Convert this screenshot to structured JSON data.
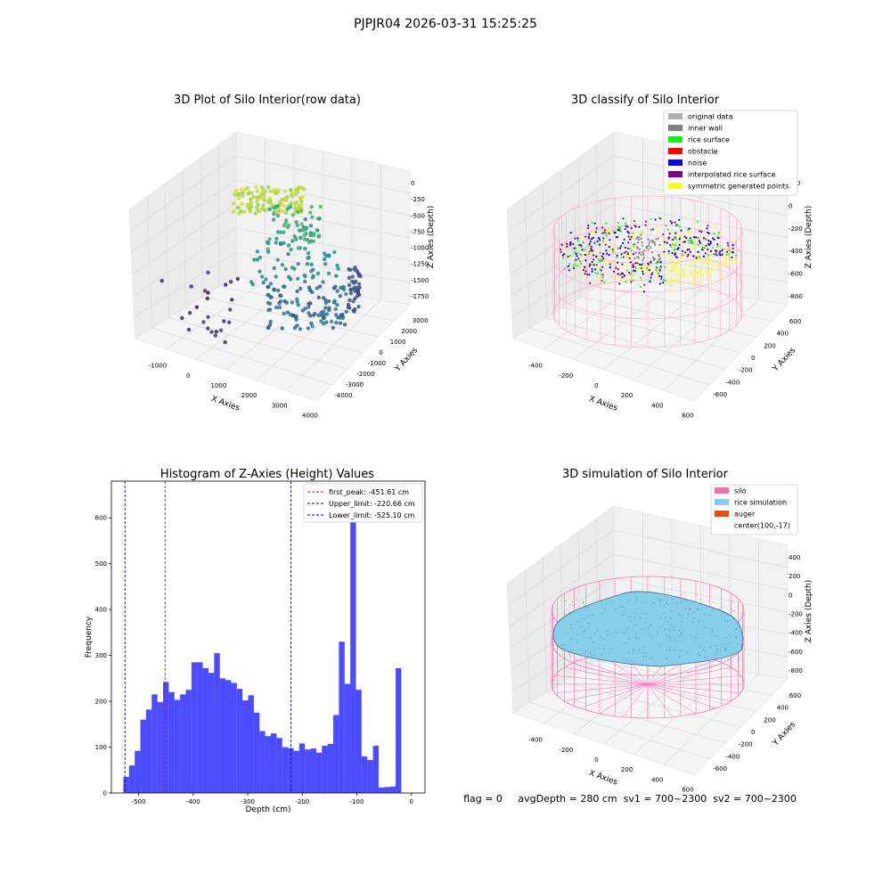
{
  "suptitle": "PJPJR04 2026-03-31 15:25:25",
  "panels": {
    "p1": {
      "title": "3D Plot of Silo Interior(row data)",
      "xlabel": "X Axies",
      "ylabel": "Y Axies",
      "zlabel": "Z Axies (Depth)",
      "xticks": [
        "-1000",
        "0",
        "1000",
        "2000",
        "3000",
        "4000"
      ],
      "yticks": [
        "-4000",
        "-3000",
        "-2000",
        "-1000",
        "0",
        "1000",
        "2000",
        "3000"
      ],
      "zticks": [
        "0",
        "-250",
        "-500",
        "-750",
        "-1000",
        "-1250",
        "-1500",
        "-1750"
      ]
    },
    "p2": {
      "title": "3D classify of Silo Interior",
      "xlabel": "X Axies",
      "ylabel": "Y Axies",
      "zlabel": "Z Axies (Depth)",
      "xticks": [
        "-400",
        "-200",
        "0",
        "200",
        "400",
        "600"
      ],
      "yticks": [
        "-600",
        "-400",
        "-200",
        "0",
        "200",
        "400",
        "600"
      ],
      "zticks": [
        "200",
        "0",
        "-200",
        "-400",
        "-600",
        "-800"
      ],
      "legend": [
        {
          "label": "original data",
          "color": "#b0b0b0"
        },
        {
          "label": "inner wall",
          "color": "#808080"
        },
        {
          "label": "rice surface",
          "color": "#00ff00"
        },
        {
          "label": "obstacle",
          "color": "#ff0000"
        },
        {
          "label": "noise",
          "color": "#0000ff"
        },
        {
          "label": "interpolated rice surface",
          "color": "#800080"
        },
        {
          "label": "symmetric generated points",
          "color": "#ffff00"
        }
      ]
    },
    "p4": {
      "title": "3D simulation of Silo Interior",
      "xlabel": "X Axies",
      "ylabel": "Y Axies",
      "zlabel": "Z Axies (Depth)",
      "xticks": [
        "-400",
        "-200",
        "0",
        "200",
        "400",
        "600"
      ],
      "yticks": [
        "-600",
        "-400",
        "-200",
        "0",
        "200",
        "400",
        "600"
      ],
      "zticks": [
        "400",
        "200",
        "0",
        "-200",
        "-400",
        "-600",
        "-800"
      ],
      "legend": [
        {
          "label": "silo",
          "color": "#ff69b4"
        },
        {
          "label": "rice simulation",
          "color": "#87ceeb"
        },
        {
          "label": "auger",
          "color": "#ff4500"
        },
        {
          "label": "center(100,-17)",
          "color": ""
        }
      ]
    }
  },
  "status_text": "flag = 0     avgDepth = 280 cm  sv1 = 700~2300  sv2 = 700~2300",
  "chart_data": [
    {
      "type": "scatter",
      "title": "3D Plot of Silo Interior(row data)",
      "xlabel": "X Axies",
      "ylabel": "Y Axies",
      "zlabel": "Z Axies (Depth)",
      "xlim": [
        -1500,
        4500
      ],
      "ylim": [
        -4500,
        3500
      ],
      "zlim": [
        -2000,
        100
      ],
      "colormap": "viridis"
    },
    {
      "type": "scatter",
      "title": "3D classify of Silo Interior",
      "xlabel": "X Axies",
      "ylabel": "Y Axies",
      "zlabel": "Z Axies (Depth)",
      "xlim": [
        -500,
        700
      ],
      "ylim": [
        -700,
        700
      ],
      "zlim": [
        -900,
        300
      ],
      "series": [
        {
          "name": "original data"
        },
        {
          "name": "inner wall"
        },
        {
          "name": "rice surface"
        },
        {
          "name": "obstacle"
        },
        {
          "name": "noise"
        },
        {
          "name": "interpolated rice surface"
        },
        {
          "name": "symmetric generated points"
        }
      ]
    },
    {
      "type": "bar",
      "title": "Histogram of Z-Axies (Height) Values",
      "xlabel": "Depth (cm)",
      "ylabel": "Frequency",
      "xlim": [
        -550,
        25
      ],
      "ylim": [
        0,
        680
      ],
      "xticks": [
        -500,
        -400,
        -300,
        -200,
        -100,
        0
      ],
      "yticks": [
        0,
        100,
        200,
        300,
        400,
        500,
        600
      ],
      "bin_start": -528,
      "bin_width": 10.4,
      "values": [
        35,
        60,
        92,
        160,
        182,
        215,
        198,
        242,
        220,
        203,
        215,
        225,
        285,
        285,
        272,
        262,
        305,
        250,
        246,
        240,
        227,
        202,
        213,
        175,
        135,
        124,
        130,
        120,
        100,
        98,
        92,
        108,
        95,
        97,
        88,
        103,
        107,
        170,
        330,
        238,
        650,
        225,
        80,
        72,
        103,
        12,
        13,
        14,
        272
      ],
      "color": "#0000ff",
      "lines": [
        {
          "label": "first_peak: -451.61 cm",
          "x": -451.61,
          "color": "#ff0000"
        },
        {
          "label": "Upper_limit: -220.66 cm",
          "x": -220.66,
          "color": "#0000aa"
        },
        {
          "label": "Lower_limit: -525.10 cm",
          "x": -525.1,
          "color": "#0000aa"
        }
      ],
      "legend_position": "top-right"
    },
    {
      "type": "area",
      "title": "3D simulation of Silo Interior",
      "xlabel": "X Axies",
      "ylabel": "Y Axies",
      "zlabel": "Z Axies (Depth)",
      "xlim": [
        -500,
        700
      ],
      "ylim": [
        -700,
        700
      ],
      "zlim": [
        -900,
        450
      ],
      "series": [
        {
          "name": "silo"
        },
        {
          "name": "rice simulation"
        },
        {
          "name": "auger"
        },
        {
          "name": "center(100,-17)"
        }
      ]
    }
  ]
}
